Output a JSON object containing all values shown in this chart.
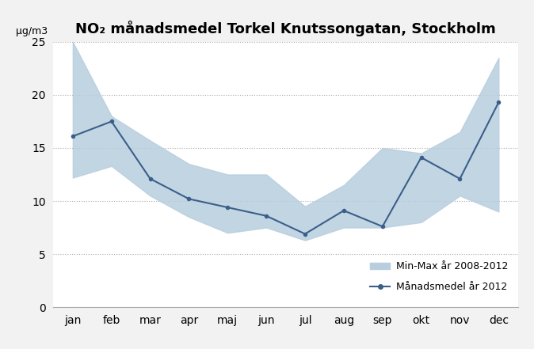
{
  "title": "NO₂ månadsmedel Torkel Knutssongatan, Stockholm",
  "ylabel": "µg/m3",
  "months": [
    "jan",
    "feb",
    "mar",
    "apr",
    "maj",
    "jun",
    "jul",
    "aug",
    "sep",
    "okt",
    "nov",
    "dec"
  ],
  "mean_2012": [
    16.1,
    17.5,
    12.1,
    10.2,
    9.4,
    8.6,
    6.9,
    9.1,
    7.6,
    14.1,
    12.1,
    19.3
  ],
  "min_2008_2012": [
    12.2,
    13.3,
    10.5,
    8.5,
    7.0,
    7.5,
    6.3,
    7.5,
    7.5,
    8.0,
    10.5,
    9.0
  ],
  "max_2008_2012": [
    25.0,
    18.0,
    15.7,
    13.5,
    12.5,
    12.5,
    9.5,
    11.5,
    15.0,
    14.5,
    16.5,
    23.5
  ],
  "line_color": "#3B5F8A",
  "fill_color": "#B8CEDE",
  "ylim": [
    0,
    25
  ],
  "yticks": [
    0,
    5,
    10,
    15,
    20,
    25
  ],
  "legend_fill_label": "Min-Max år 2008-2012",
  "legend_line_label": "Månadsmedel år 2012",
  "title_fontsize": 13,
  "axis_fontsize": 9,
  "tick_fontsize": 10,
  "figsize": [
    6.74,
    4.41
  ],
  "dpi": 100
}
